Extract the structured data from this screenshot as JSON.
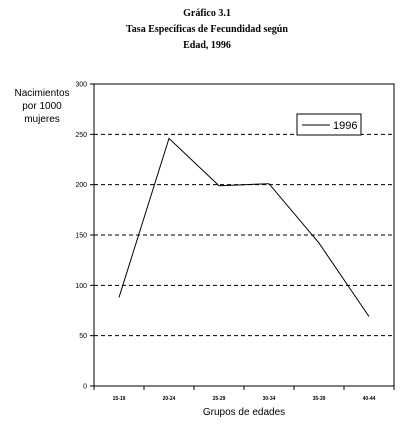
{
  "chart_data": {
    "type": "line",
    "title_lines": [
      "Gráfico 3.1",
      "Tasa Específicas de  Fecundidad según",
      "Edad, 1996"
    ],
    "ylabel_lines": [
      "Nacimientos",
      "por 1000",
      "mujeres"
    ],
    "xlabel": "Grupos de edades",
    "categories": [
      "15-19",
      "20-24",
      "25-29",
      "30-34",
      "35-39",
      "40-44"
    ],
    "ylim": [
      0,
      300
    ],
    "yticks": [
      0,
      50,
      100,
      150,
      200,
      250,
      300
    ],
    "grid": "dashed-horizontal",
    "legend_position": "top-right",
    "series": [
      {
        "name": "1996",
        "x": [
          0.5,
          1.5,
          2.5,
          3.0,
          3.5,
          4.5,
          5.5
        ],
        "values": [
          88,
          246,
          199,
          200,
          201,
          142,
          69
        ],
        "color": "#000000"
      }
    ]
  }
}
